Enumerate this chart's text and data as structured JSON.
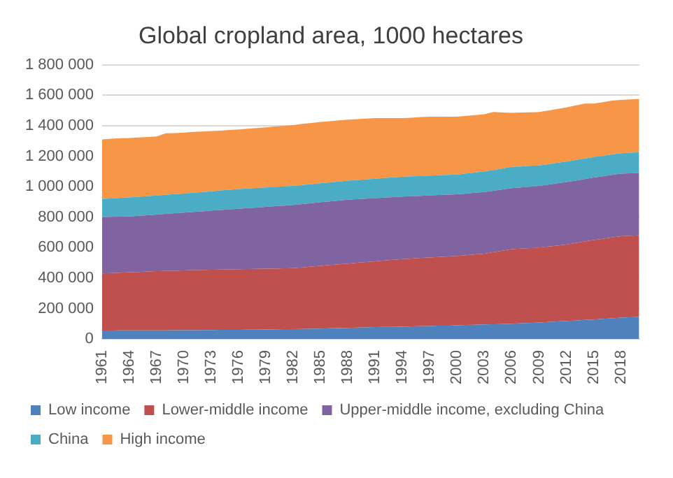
{
  "chart_data": {
    "type": "area",
    "title": "Global cropland area, 1000 hectares",
    "stacked": true,
    "grid": "y",
    "legend": "bottom",
    "categories": [
      "1961",
      null,
      null,
      "1964",
      null,
      null,
      "1967",
      null,
      null,
      "1970",
      null,
      null,
      "1973",
      null,
      null,
      "1976",
      null,
      null,
      "1979",
      null,
      null,
      "1982",
      null,
      null,
      "1985",
      null,
      null,
      "1988",
      null,
      null,
      "1991",
      null,
      null,
      "1994",
      null,
      null,
      "1997",
      null,
      null,
      "2000",
      null,
      null,
      "2003",
      null,
      null,
      "2006",
      null,
      null,
      "2009",
      null,
      null,
      "2012",
      null,
      null,
      "2015",
      null,
      null,
      "2018",
      null,
      null
    ],
    "ylim": [
      0,
      1800000
    ],
    "yticks": [
      0,
      {
        "value": 200000,
        "label": "200 000"
      },
      {
        "value": 400000,
        "label": "400 000"
      },
      {
        "value": 600000,
        "label": "600 000"
      },
      {
        "value": 800000,
        "label": "800 000"
      },
      {
        "value": 1000000,
        "label": "1 000 000"
      },
      {
        "value": 1200000,
        "label": "1 200 000"
      },
      {
        "value": 1400000,
        "label": "1 400 000"
      },
      {
        "value": 1600000,
        "label": "1 600 000"
      },
      {
        "value": 1800000,
        "label": "1 800 000"
      }
    ],
    "series": [
      {
        "name": "Low income",
        "color": "#4f81bd",
        "values": [
          55000,
          55000,
          56000,
          56000,
          56000,
          57000,
          57000,
          57000,
          58000,
          58000,
          58000,
          59000,
          59000,
          60000,
          60000,
          60000,
          61000,
          61000,
          62000,
          63000,
          64000,
          65000,
          66000,
          67000,
          68000,
          70000,
          71000,
          73000,
          75000,
          76000,
          78000,
          79000,
          80000,
          81000,
          83000,
          84000,
          85000,
          87000,
          88000,
          90000,
          92000,
          93000,
          95000,
          97000,
          98000,
          100000,
          103000,
          105000,
          108000,
          111000,
          115000,
          118000,
          121000,
          125000,
          128000,
          132000,
          136000,
          140000,
          143000,
          145000
        ]
      },
      {
        "name": "Lower-middle income",
        "color": "#c0504d",
        "values": [
          375000,
          378000,
          379000,
          382000,
          384000,
          386000,
          388000,
          390000,
          390000,
          392000,
          394000,
          394000,
          396000,
          396000,
          397000,
          398000,
          398000,
          399000,
          399000,
          399000,
          400000,
          400000,
          404000,
          408000,
          412000,
          415000,
          419000,
          422000,
          425000,
          429000,
          432000,
          436000,
          440000,
          444000,
          445000,
          448000,
          450000,
          451000,
          454000,
          455000,
          458000,
          462000,
          465000,
          473000,
          482000,
          490000,
          490000,
          492000,
          492000,
          496000,
          498000,
          502000,
          509000,
          515000,
          522000,
          526000,
          531000,
          535000,
          535000,
          535000
        ]
      },
      {
        "name": "Upper-middle income, excluding China",
        "color": "#8064a2",
        "values": [
          370000,
          369000,
          368000,
          367000,
          369000,
          370000,
          372000,
          375000,
          378000,
          380000,
          382000,
          385000,
          388000,
          391000,
          394000,
          397000,
          400000,
          403000,
          407000,
          410000,
          412000,
          415000,
          416000,
          417000,
          418000,
          418000,
          419000,
          420000,
          418000,
          417000,
          415000,
          413000,
          412000,
          410000,
          410000,
          408000,
          408000,
          407000,
          406000,
          405000,
          405000,
          405000,
          405000,
          403000,
          402000,
          400000,
          402000,
          403000,
          405000,
          406000,
          409000,
          410000,
          410000,
          410000,
          410000,
          410000,
          410000,
          410000,
          410000,
          410000
        ]
      },
      {
        "name": "China",
        "color": "#4bacc6",
        "values": [
          120000,
          121000,
          124000,
          125000,
          125000,
          125000,
          125000,
          125000,
          125000,
          125000,
          126000,
          127000,
          127000,
          128000,
          129000,
          130000,
          129000,
          129000,
          127000,
          126000,
          126000,
          125000,
          125000,
          125000,
          125000,
          125000,
          125000,
          125000,
          126000,
          126000,
          127000,
          129000,
          129000,
          130000,
          130000,
          130000,
          130000,
          130000,
          130000,
          130000,
          132000,
          133000,
          135000,
          137000,
          138000,
          140000,
          138000,
          137000,
          135000,
          135000,
          135000,
          135000,
          135000,
          135000,
          135000,
          135000,
          135000,
          135000,
          135000,
          135000
        ]
      },
      {
        "name": "High income",
        "color": "#f79646",
        "values": [
          390000,
          392000,
          391000,
          390000,
          389000,
          388000,
          388000,
          403000,
          401000,
          400000,
          400000,
          397000,
          395000,
          393000,
          392000,
          391000,
          392000,
          393000,
          395000,
          397000,
          398000,
          400000,
          401000,
          401000,
          402000,
          402000,
          401000,
          400000,
          399000,
          399000,
          398000,
          393000,
          389000,
          385000,
          385000,
          387000,
          387000,
          385000,
          382000,
          380000,
          378000,
          377000,
          375000,
          380000,
          367000,
          355000,
          354000,
          351000,
          350000,
          352000,
          353000,
          355000,
          358000,
          360000,
          350000,
          352000,
          353000,
          350000,
          350000,
          350000
        ]
      }
    ]
  }
}
